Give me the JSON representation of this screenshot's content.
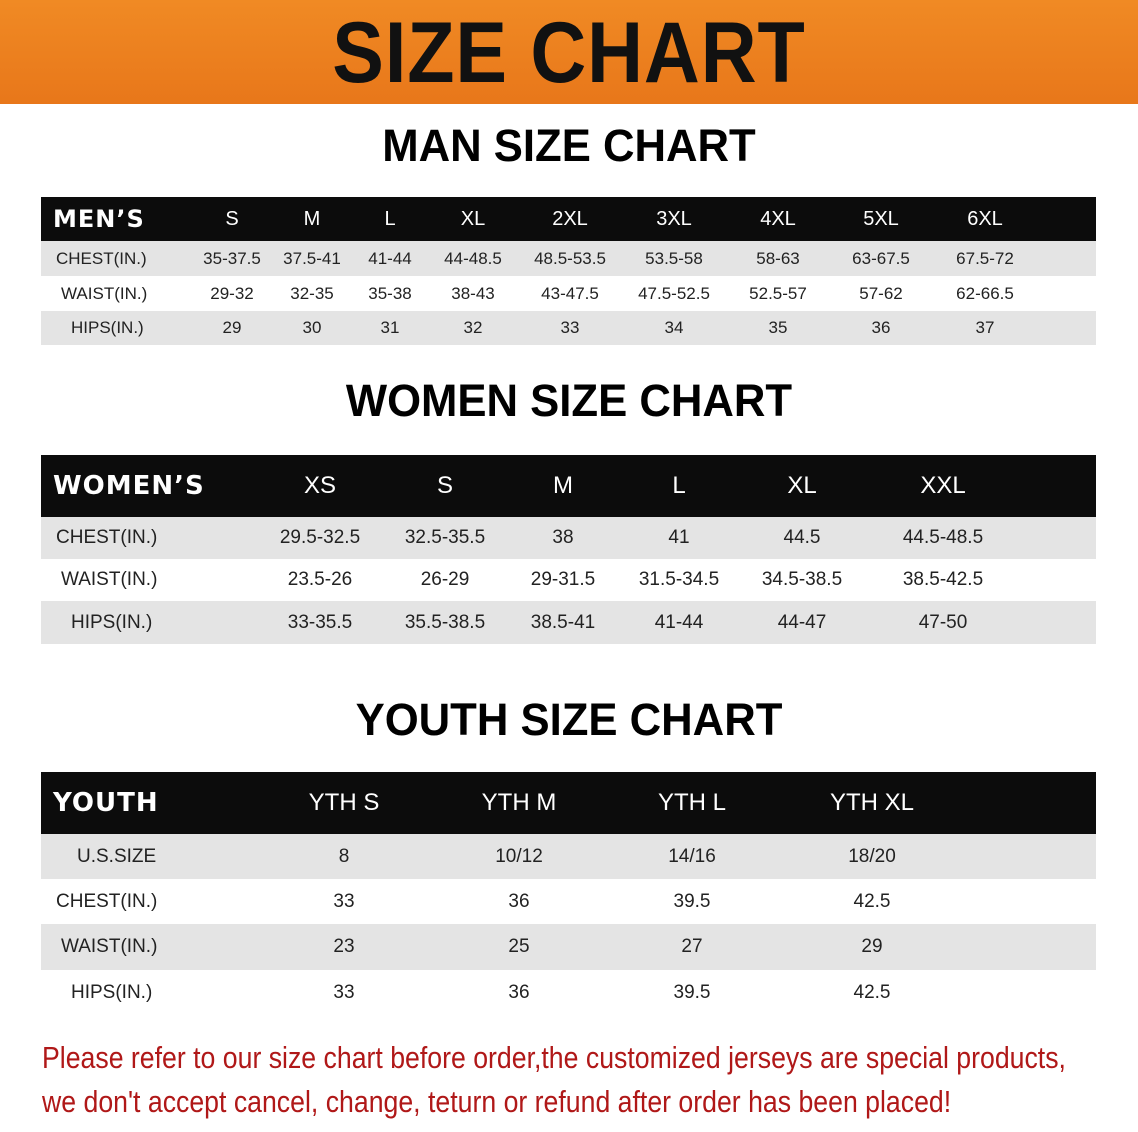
{
  "title": "SIZE CHART",
  "men": {
    "title": "MAN SIZE CHART",
    "header_label": "MEN’S",
    "sizes": [
      "S",
      "M",
      "L",
      "XL",
      "2XL",
      "3XL",
      "4XL",
      "5XL",
      "6XL"
    ],
    "rows": [
      {
        "label": "CHEST(IN.)",
        "values": [
          "35-37.5",
          "37.5-41",
          "41-44",
          "44-48.5",
          "48.5-53.5",
          "53.5-58",
          "58-63",
          "63-67.5",
          "67.5-72"
        ]
      },
      {
        "label": "WAIST(IN.)",
        "values": [
          "29-32",
          "32-35",
          "35-38",
          "38-43",
          "43-47.5",
          "47.5-52.5",
          "52.5-57",
          "57-62",
          "62-66.5"
        ]
      },
      {
        "label": "HIPS(IN.)",
        "values": [
          "29",
          "30",
          "31",
          "32",
          "33",
          "34",
          "35",
          "36",
          "37"
        ]
      }
    ]
  },
  "women": {
    "title": "WOMEN SIZE CHART",
    "header_label": "WOMEN’S",
    "sizes": [
      "XS",
      "S",
      "M",
      "L",
      "XL",
      "XXL"
    ],
    "rows": [
      {
        "label": "CHEST(IN.)",
        "values": [
          "29.5-32.5",
          "32.5-35.5",
          "38",
          "41",
          "44.5",
          "44.5-48.5"
        ]
      },
      {
        "label": "WAIST(IN.)",
        "values": [
          "23.5-26",
          "26-29",
          "29-31.5",
          "31.5-34.5",
          "34.5-38.5",
          "38.5-42.5"
        ]
      },
      {
        "label": "HIPS(IN.)",
        "values": [
          "33-35.5",
          "35.5-38.5",
          "38.5-41",
          "41-44",
          "44-47",
          "47-50"
        ]
      }
    ]
  },
  "youth": {
    "title": "YOUTH SIZE CHART",
    "header_label": "YOUTH",
    "sizes": [
      "YTH S",
      "YTH M",
      "YTH L",
      "YTH XL"
    ],
    "rows": [
      {
        "label": "U.S.SIZE",
        "values": [
          "8",
          "10/12",
          "14/16",
          "18/20"
        ]
      },
      {
        "label": "CHEST(IN.)",
        "values": [
          "33",
          "36",
          "39.5",
          "42.5"
        ]
      },
      {
        "label": "WAIST(IN.)",
        "values": [
          "23",
          "25",
          "27",
          "29"
        ]
      },
      {
        "label": "HIPS(IN.)",
        "values": [
          "33",
          "36",
          "39.5",
          "42.5"
        ]
      }
    ]
  },
  "notice": {
    "line1": "Please refer to our size chart before order,the customized jerseys are special products,",
    "line2": "we don't accept cancel, change, teturn or refund after order has been placed!"
  },
  "colors": {
    "banner": "#ec7f1f",
    "header": "#0c0c0c",
    "stripe": "#e4e4e4",
    "notice": "#b01818"
  }
}
